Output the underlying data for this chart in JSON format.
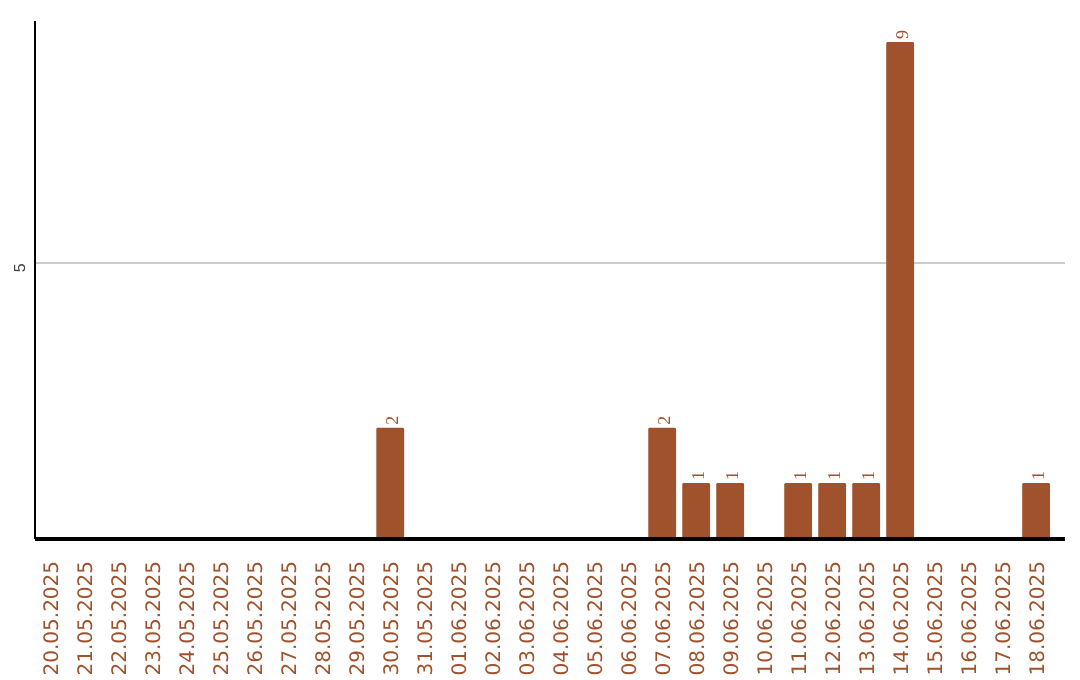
{
  "chart_data": {
    "type": "bar",
    "categories": [
      "20.05.2025",
      "21.05.2025",
      "22.05.2025",
      "23.05.2025",
      "24.05.2025",
      "25.05.2025",
      "26.05.2025",
      "27.05.2025",
      "28.05.2025",
      "29.05.2025",
      "30.05.2025",
      "31.05.2025",
      "01.06.2025",
      "02.06.2025",
      "03.06.2025",
      "04.06.2025",
      "05.06.2025",
      "06.06.2025",
      "07.06.2025",
      "08.06.2025",
      "09.06.2025",
      "10.06.2025",
      "11.06.2025",
      "12.06.2025",
      "13.06.2025",
      "14.06.2025",
      "15.06.2025",
      "16.06.2025",
      "17.06.2025",
      "18.06.2025"
    ],
    "values": [
      0,
      0,
      0,
      0,
      0,
      0,
      0,
      0,
      0,
      0,
      2,
      0,
      0,
      0,
      0,
      0,
      0,
      0,
      2,
      1,
      1,
      0,
      1,
      1,
      1,
      9,
      0,
      0,
      0,
      1
    ],
    "value_labels": [
      null,
      null,
      null,
      null,
      null,
      null,
      null,
      null,
      null,
      null,
      "2",
      null,
      null,
      null,
      null,
      null,
      null,
      null,
      "2",
      "1",
      "1",
      null,
      "1",
      "1",
      "1",
      "9",
      null,
      null,
      null,
      "1"
    ],
    "color": "#a0522d",
    "ylim": [
      0,
      9.4
    ],
    "yticks": [
      5
    ],
    "grid": "y"
  }
}
